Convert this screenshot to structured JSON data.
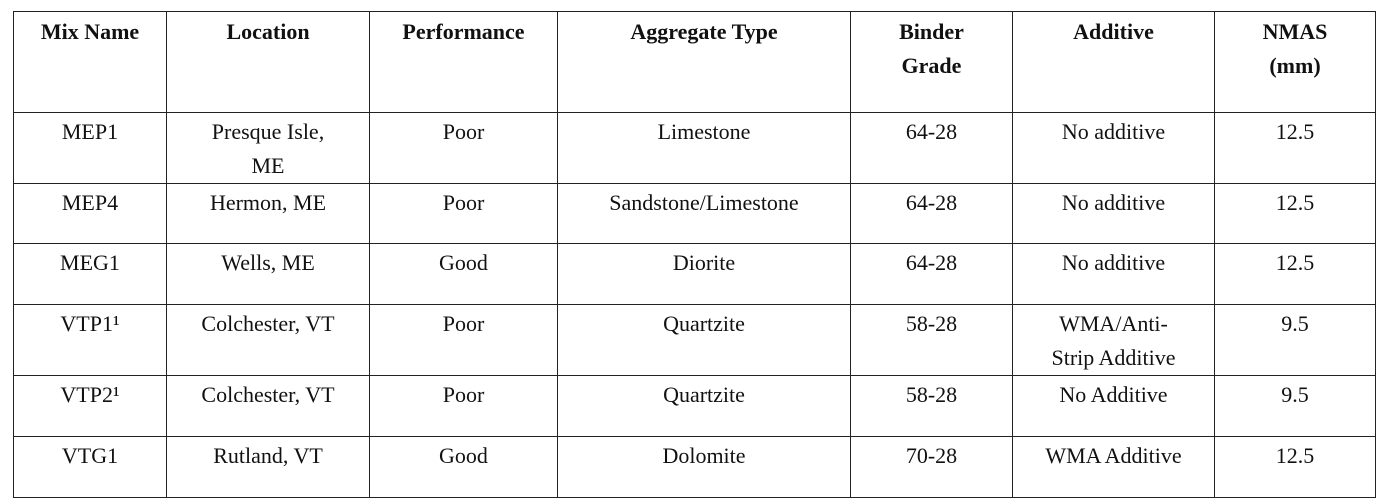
{
  "table": {
    "header": [
      "Mix Name",
      "Location",
      "Performance",
      "Aggregate Type",
      "Binder\nGrade",
      "Additive",
      "NMAS\n(mm)"
    ],
    "rows": [
      [
        "MEP1",
        "Presque Isle,\nME",
        "Poor",
        "Limestone",
        "64-28",
        "No additive",
        "12.5"
      ],
      [
        "MEP4",
        "Hermon, ME",
        "Poor",
        "Sandstone/Limestone",
        "64-28",
        "No additive",
        "12.5"
      ],
      [
        "MEG1",
        "Wells, ME",
        "Good",
        "Diorite",
        "64-28",
        "No additive",
        "12.5"
      ],
      [
        "VTP1¹",
        "Colchester, VT",
        "Poor",
        "Quartzite",
        "58-28",
        "WMA/Anti-\nStrip Additive",
        "9.5"
      ],
      [
        "VTP2¹",
        "Colchester, VT",
        "Poor",
        "Quartzite",
        "58-28",
        "No Additive",
        "9.5"
      ],
      [
        "VTG1",
        "Rutland, VT",
        "Good",
        "Dolomite",
        "70-28",
        "WMA Additive",
        "12.5"
      ]
    ]
  }
}
